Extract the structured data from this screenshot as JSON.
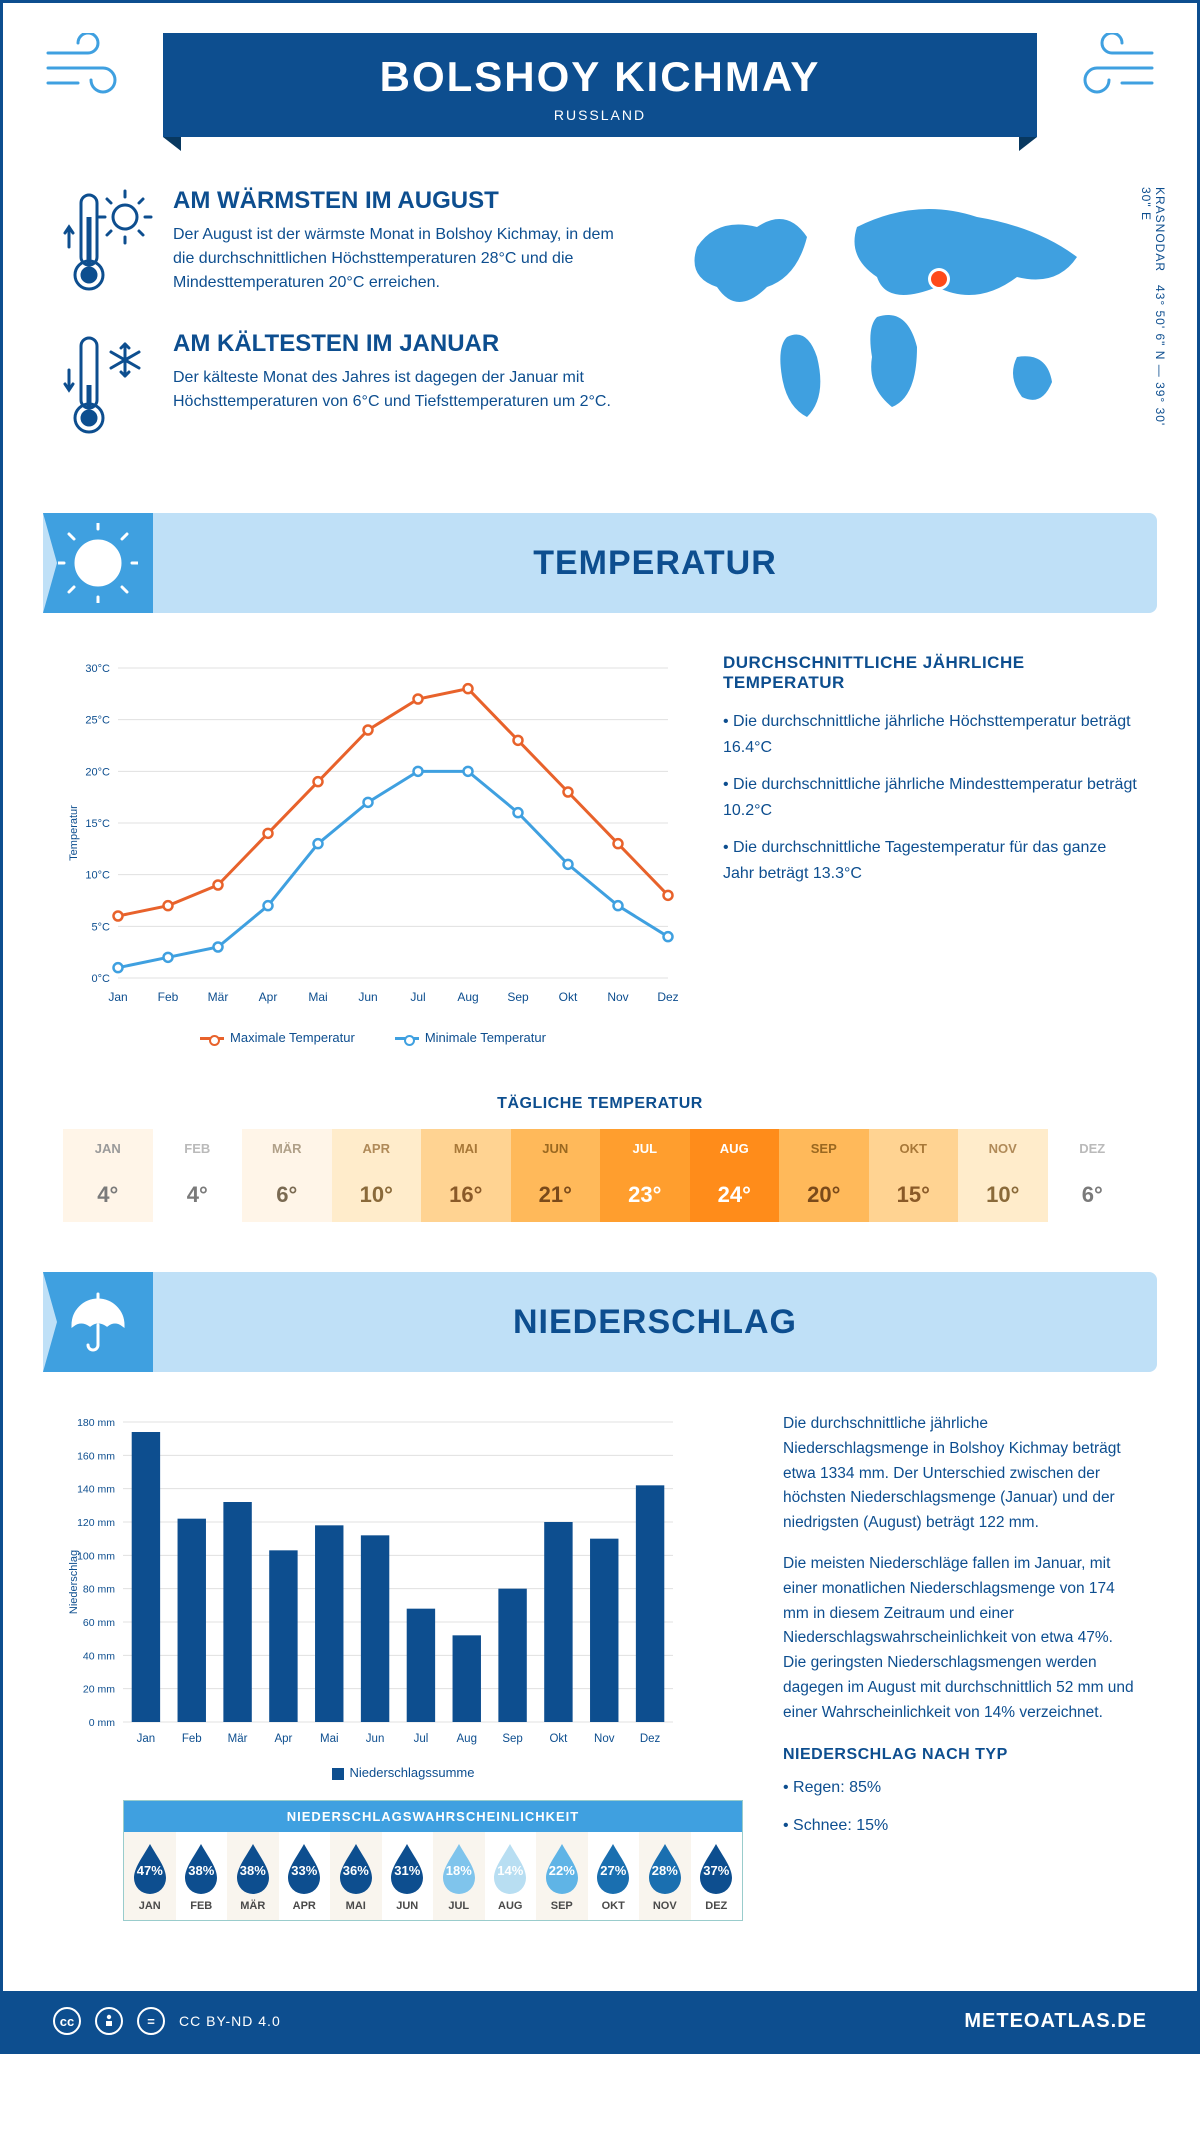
{
  "header": {
    "title": "BOLSHOY KICHMAY",
    "subtitle": "RUSSLAND"
  },
  "coords": {
    "text": "43° 50' 6\" N — 39° 30' 30\" E",
    "region": "KRASNODAR"
  },
  "facts": {
    "warm": {
      "title": "AM WÄRMSTEN IM AUGUST",
      "body": "Der August ist der wärmste Monat in Bolshoy Kichmay, in dem die durchschnittlichen Höchsttemperaturen 28°C und die Mindesttemperaturen 20°C erreichen."
    },
    "cold": {
      "title": "AM KÄLTESTEN IM JANUAR",
      "body": "Der kälteste Monat des Jahres ist dagegen der Januar mit Höchsttemperaturen von 6°C und Tiefsttemperaturen um 2°C."
    }
  },
  "sections": {
    "temp": "TEMPERATUR",
    "precip": "NIEDERSCHLAG"
  },
  "temp_chart": {
    "type": "line",
    "y_label": "Temperatur",
    "y_ticks": [
      "0°C",
      "5°C",
      "10°C",
      "15°C",
      "20°C",
      "25°C",
      "30°C"
    ],
    "ylim": [
      0,
      30
    ],
    "months": [
      "Jan",
      "Feb",
      "Mär",
      "Apr",
      "Mai",
      "Jun",
      "Jul",
      "Aug",
      "Sep",
      "Okt",
      "Nov",
      "Dez"
    ],
    "series": {
      "max": {
        "label": "Maximale Temperatur",
        "color": "#e8622b",
        "values": [
          6,
          7,
          9,
          14,
          19,
          24,
          27,
          28,
          23,
          18,
          13,
          8
        ]
      },
      "min": {
        "label": "Minimale Temperatur",
        "color": "#3fa0e0",
        "values": [
          1,
          2,
          3,
          7,
          13,
          17,
          20,
          20,
          16,
          11,
          7,
          4
        ]
      }
    },
    "grid_color": "#e0e0e0",
    "background": "#ffffff",
    "line_width": 3,
    "marker": "circle"
  },
  "temp_text": {
    "heading": "DURCHSCHNITTLICHE JÄHRLICHE TEMPERATUR",
    "bullets": [
      "Die durchschnittliche jährliche Höchsttemperatur beträgt 16.4°C",
      "Die durchschnittliche jährliche Mindesttemperatur beträgt 10.2°C",
      "Die durchschnittliche Tagestemperatur für das ganze Jahr beträgt 13.3°C"
    ]
  },
  "daily_temp": {
    "title": "TÄGLICHE TEMPERATUR",
    "months": [
      "JAN",
      "FEB",
      "MÄR",
      "APR",
      "MAI",
      "JUN",
      "JUL",
      "AUG",
      "SEP",
      "OKT",
      "NOV",
      "DEZ"
    ],
    "values": [
      "4°",
      "4°",
      "6°",
      "10°",
      "16°",
      "21°",
      "23°",
      "24°",
      "20°",
      "15°",
      "10°",
      "6°"
    ],
    "bg_colors": [
      "#fff5e8",
      "#ffffff",
      "#fff5e8",
      "#ffeccb",
      "#ffd392",
      "#ffb95a",
      "#ff9e2e",
      "#ff8c1a",
      "#ffb95a",
      "#ffd392",
      "#ffeccb",
      "#ffffff"
    ],
    "text_colors": [
      "#7a7a7a",
      "#7a7a7a",
      "#7a6a52",
      "#8a6a3a",
      "#8a5a28",
      "#7a4a1a",
      "#ffffff",
      "#ffffff",
      "#7a4a1a",
      "#8a5a28",
      "#8a6a3a",
      "#7a7a7a"
    ],
    "mon_colors": [
      "#9a9a9a",
      "#bababa",
      "#b0a088",
      "#b08a58",
      "#a87838",
      "#9a6820",
      "#ffffff",
      "#ffffff",
      "#9a6820",
      "#a87838",
      "#b08a58",
      "#bababa"
    ]
  },
  "precip_chart": {
    "type": "bar",
    "y_label": "Niederschlag",
    "y_ticks": [
      "0 mm",
      "20 mm",
      "40 mm",
      "60 mm",
      "80 mm",
      "100 mm",
      "120 mm",
      "140 mm",
      "160 mm",
      "180 mm"
    ],
    "ylim": [
      0,
      180
    ],
    "months": [
      "Jan",
      "Feb",
      "Mär",
      "Apr",
      "Mai",
      "Jun",
      "Jul",
      "Aug",
      "Sep",
      "Okt",
      "Nov",
      "Dez"
    ],
    "values": [
      174,
      122,
      132,
      103,
      118,
      112,
      68,
      52,
      80,
      120,
      110,
      142
    ],
    "bar_color": "#0d4e8f",
    "grid_color": "#e0e0e0",
    "legend": "Niederschlagssumme"
  },
  "precip_text": {
    "p1": "Die durchschnittliche jährliche Niederschlagsmenge in Bolshoy Kichmay beträgt etwa 1334 mm. Der Unterschied zwischen der höchsten Niederschlagsmenge (Januar) und der niedrigsten (August) beträgt 122 mm.",
    "p2": "Die meisten Niederschläge fallen im Januar, mit einer monatlichen Niederschlagsmenge von 174 mm in diesem Zeitraum und einer Niederschlagswahrscheinlichkeit von etwa 47%. Die geringsten Niederschlagsmengen werden dagegen im August mit durchschnittlich 52 mm und einer Wahrscheinlichkeit von 14% verzeichnet.",
    "type_heading": "NIEDERSCHLAG NACH TYP",
    "types": [
      "Regen: 85%",
      "Schnee: 15%"
    ]
  },
  "prob": {
    "title": "NIEDERSCHLAGSWAHRSCHEINLICHKEIT",
    "months": [
      "JAN",
      "FEB",
      "MÄR",
      "APR",
      "MAI",
      "JUN",
      "JUL",
      "AUG",
      "SEP",
      "OKT",
      "NOV",
      "DEZ"
    ],
    "values": [
      "47%",
      "38%",
      "38%",
      "33%",
      "36%",
      "31%",
      "18%",
      "14%",
      "22%",
      "27%",
      "28%",
      "37%"
    ],
    "colors": [
      "#0d4e8f",
      "#0d4e8f",
      "#0d4e8f",
      "#0d4e8f",
      "#0d4e8f",
      "#0d4e8f",
      "#7fc4ec",
      "#b8def2",
      "#5fb4e6",
      "#1a6fb0",
      "#1a6fb0",
      "#0d4e8f"
    ],
    "bg_colors": [
      "#f9f5ee",
      "#ffffff",
      "#f9f5ee",
      "#ffffff",
      "#f9f5ee",
      "#ffffff",
      "#f9f5ee",
      "#ffffff",
      "#f9f5ee",
      "#ffffff",
      "#f9f5ee",
      "#ffffff"
    ]
  },
  "footer": {
    "license": "CC BY-ND 4.0",
    "brand": "METEOATLAS.DE"
  },
  "colors": {
    "primary": "#0d4e8f",
    "accent": "#3fa0e0",
    "light": "#bfe0f7"
  }
}
